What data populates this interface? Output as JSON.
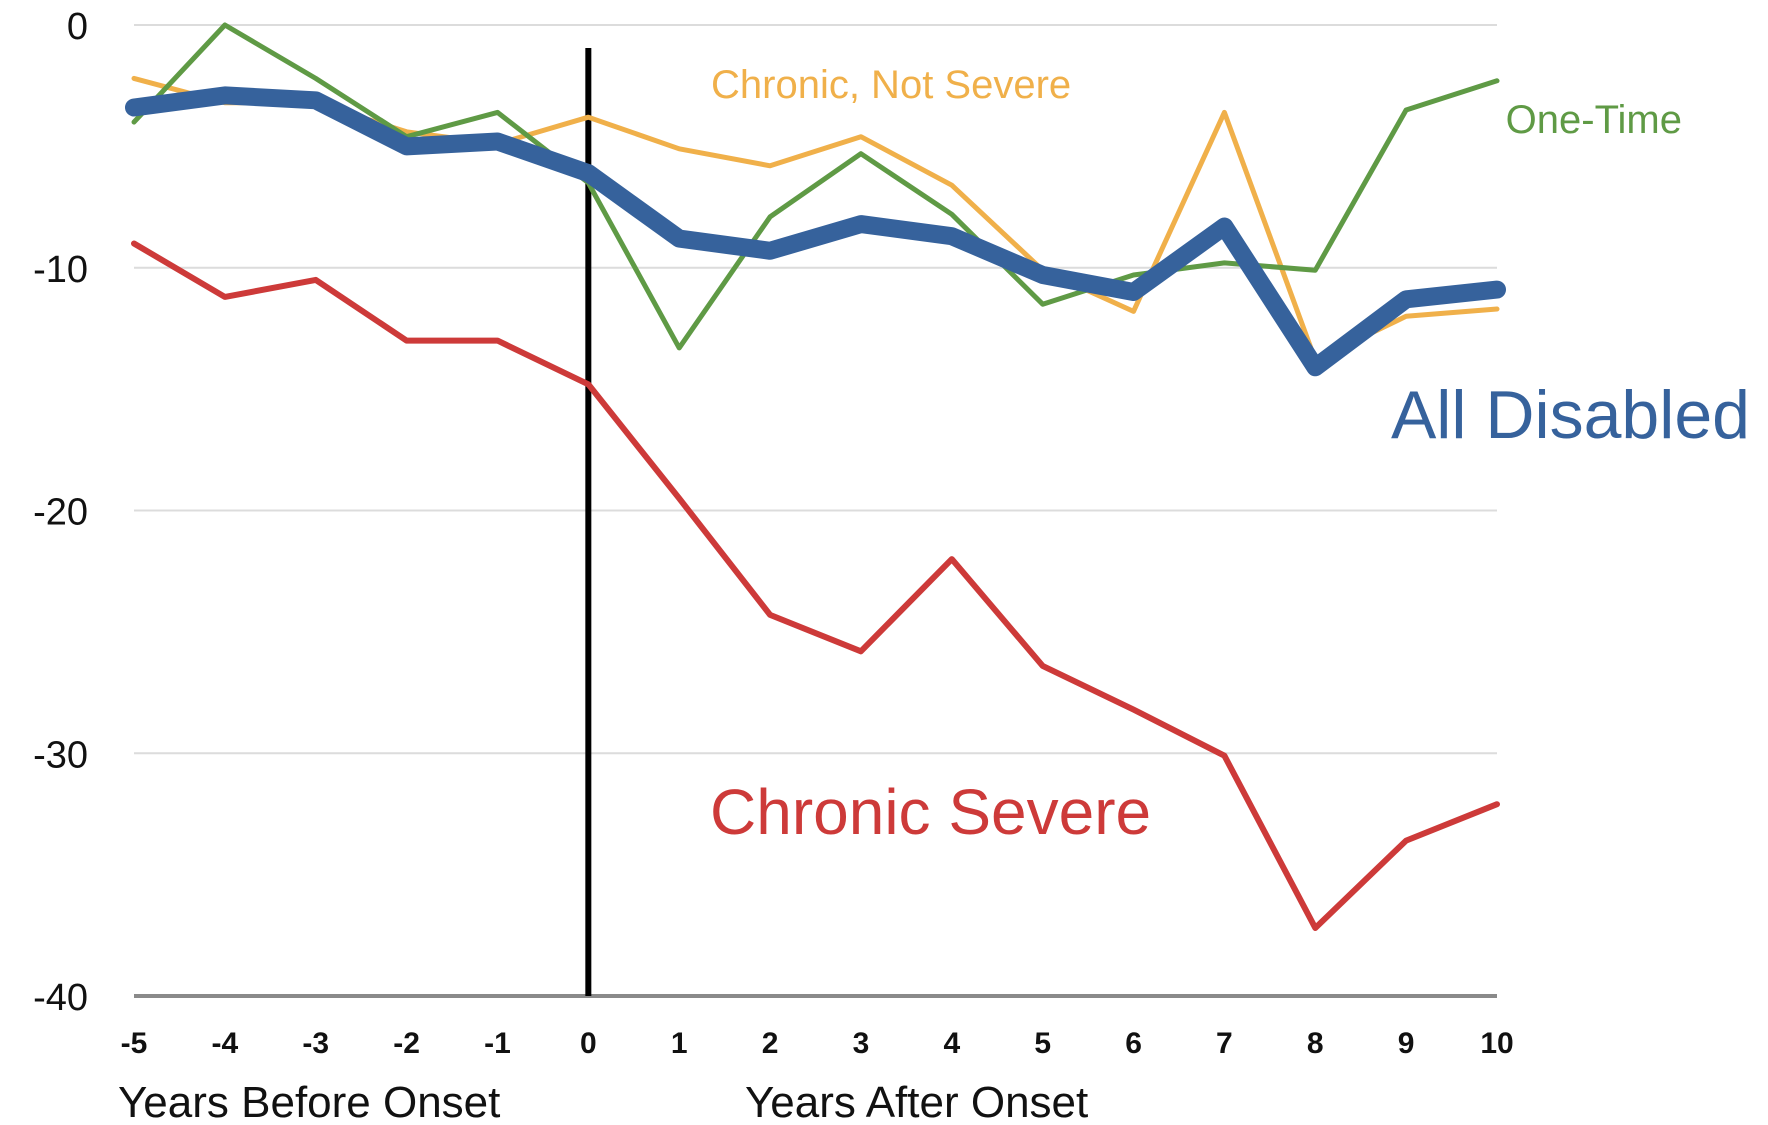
{
  "chart_data": {
    "type": "line",
    "title": "",
    "xlabel_left": "Years Before Onset",
    "xlabel_right": "Years After Onset",
    "ylabel": "",
    "x": [
      -5,
      -4,
      -3,
      -2,
      -1,
      0,
      1,
      2,
      3,
      4,
      5,
      6,
      7,
      8,
      9,
      10
    ],
    "x_tick_labels": [
      "-5",
      "-4",
      "-3",
      "-2",
      "-1",
      "0",
      "1",
      "2",
      "3",
      "4",
      "5",
      "6",
      "7",
      "8",
      "9",
      "10"
    ],
    "y_tick_labels": [
      "0",
      "-10",
      "-20",
      "-30",
      "-40"
    ],
    "y_ticks": [
      0,
      -10,
      -20,
      -30,
      -40
    ],
    "xlim": [
      -5,
      10
    ],
    "ylim": [
      -40,
      0
    ],
    "grid": true,
    "onset_marker_x": 0,
    "legend": "inline labels",
    "series": [
      {
        "name": "Chronic, Not Severe",
        "color": "#f0b04a",
        "values": [
          -2.2,
          -3.2,
          -3.2,
          -4.4,
          -4.9,
          -3.8,
          -5.1,
          -5.8,
          -4.6,
          -6.6,
          -10.1,
          -11.8,
          -3.6,
          -13.8,
          -12.0,
          -11.7
        ]
      },
      {
        "name": "One-Time",
        "color": "#5f9a45",
        "values": [
          -4.0,
          0.0,
          -2.2,
          -4.6,
          -3.6,
          -6.5,
          -13.3,
          -7.9,
          -5.3,
          -7.8,
          -11.5,
          -10.3,
          -9.8,
          -10.1,
          -3.5,
          -2.3
        ]
      },
      {
        "name": "All Disabled",
        "color": "#36629c",
        "values": [
          -3.4,
          -2.9,
          -3.1,
          -5.0,
          -4.8,
          -6.1,
          -8.8,
          -9.3,
          -8.2,
          -8.7,
          -10.3,
          -11.0,
          -8.3,
          -14.1,
          -11.3,
          -10.9
        ]
      },
      {
        "name": "Chronic Severe",
        "color": "#cd3a39",
        "values": [
          -9.0,
          -11.2,
          -10.5,
          -13.0,
          -13.0,
          -14.8,
          -19.5,
          -24.3,
          -25.8,
          -22.0,
          -26.4,
          -28.2,
          -30.1,
          -37.2,
          -33.6,
          -32.1
        ]
      }
    ]
  }
}
